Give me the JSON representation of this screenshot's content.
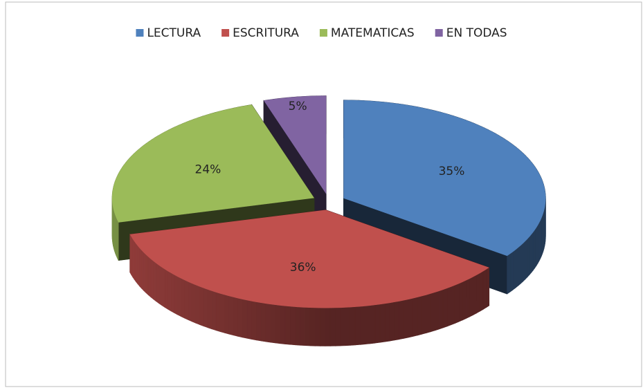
{
  "chart_data": {
    "type": "pie",
    "categories": [
      "LECTURA",
      "ESCRITURA",
      "MATEMATICAS",
      "EN TODAS"
    ],
    "values": [
      35,
      36,
      24,
      5
    ],
    "value_labels": [
      "35%",
      "36%",
      "24%",
      "5%"
    ],
    "colors": [
      "#4f81bd",
      "#c0504d",
      "#9bbb59",
      "#8064a2"
    ],
    "legend": "top"
  }
}
